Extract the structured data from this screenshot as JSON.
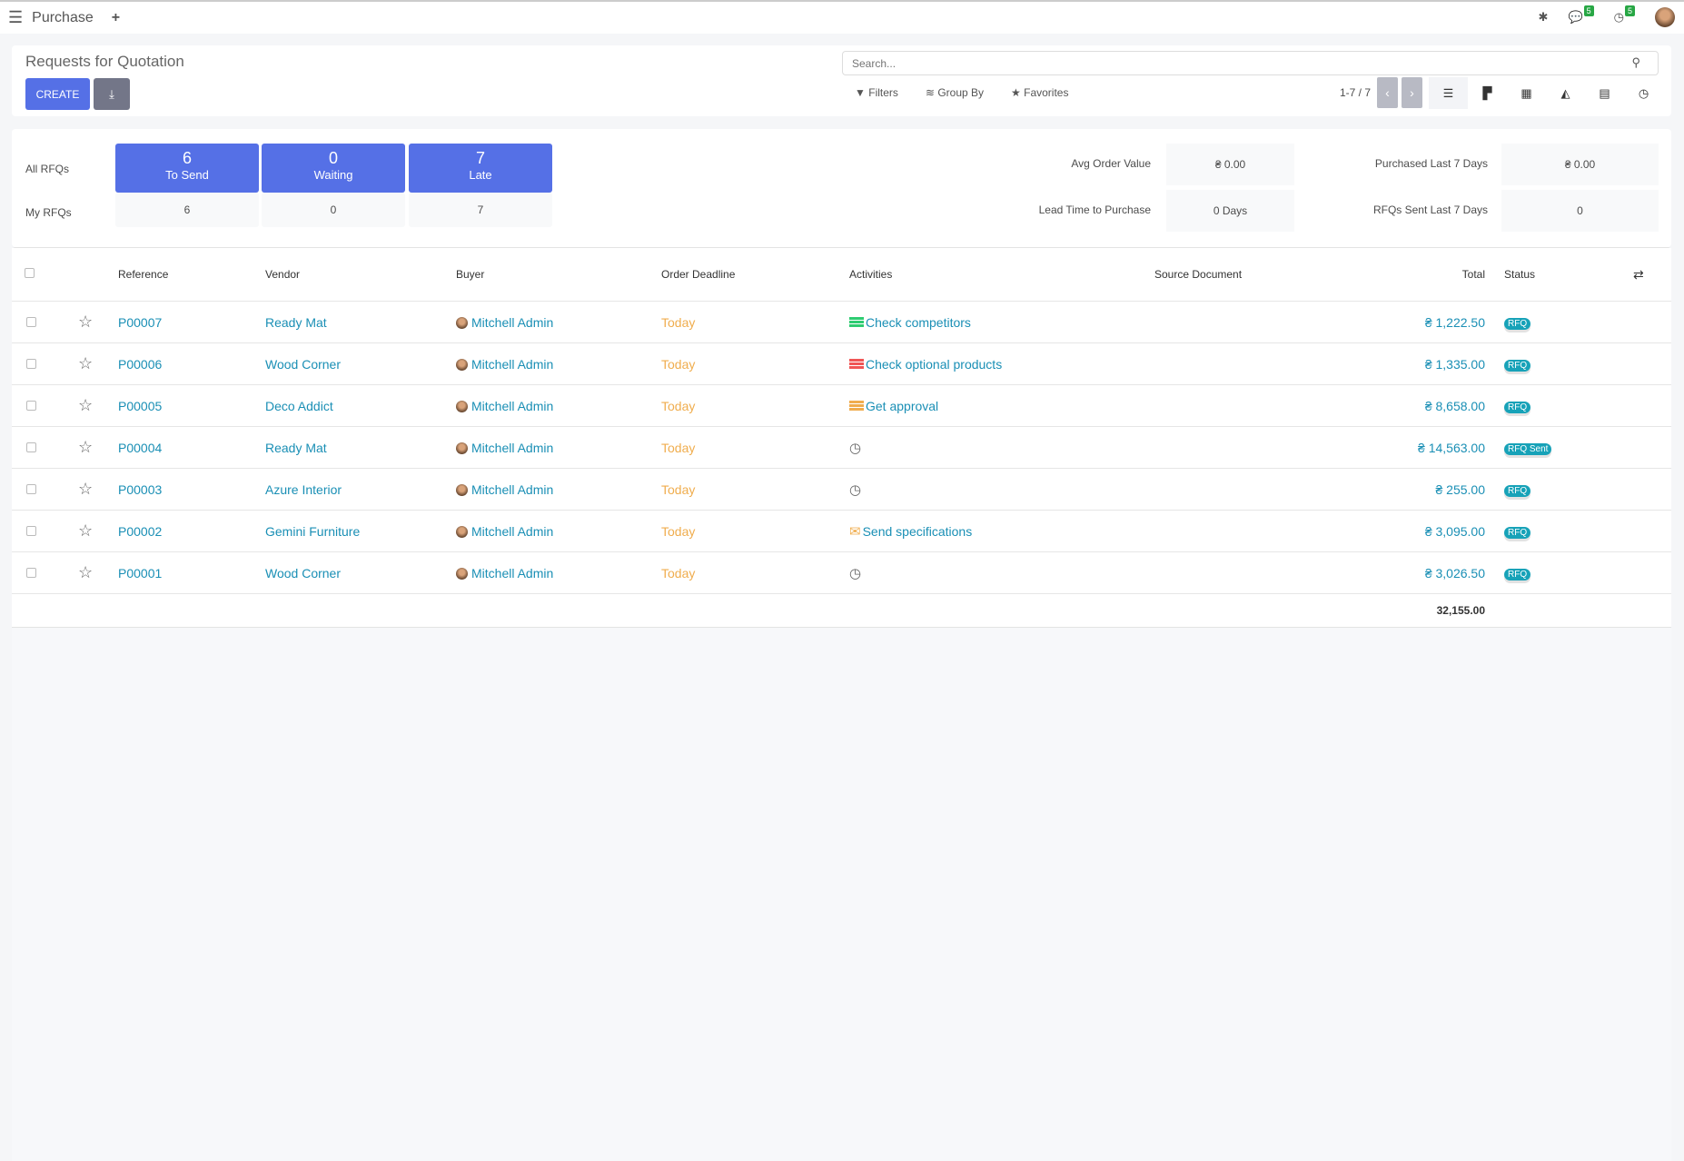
{
  "topbar": {
    "app": "Purchase",
    "menu_icon": "hamburger-icon",
    "plus": "+",
    "messages_count": "5",
    "activities_count": "5"
  },
  "control": {
    "title": "Requests for Quotation",
    "create": "CREATE",
    "search_placeholder": "Search...",
    "filters": "Filters",
    "group_by": "Group By",
    "favorites": "Favorites",
    "pager": "1-7 / 7"
  },
  "dashboard": {
    "all_label": "All RFQs",
    "my_label": "My RFQs",
    "tiles": [
      {
        "count": "6",
        "label": "To Send",
        "my": "6"
      },
      {
        "count": "0",
        "label": "Waiting",
        "my": "0"
      },
      {
        "count": "7",
        "label": "Late",
        "my": "7"
      }
    ],
    "kpis": [
      {
        "label": "Avg Order Value",
        "value": "₴ 0.00"
      },
      {
        "label": "Purchased Last 7 Days",
        "value": "₴ 0.00"
      },
      {
        "label": "Lead Time to Purchase",
        "value": "0 Days"
      },
      {
        "label": "RFQs Sent Last 7 Days",
        "value": "0"
      }
    ]
  },
  "table": {
    "headers": [
      "Reference",
      "Vendor",
      "Buyer",
      "Order Deadline",
      "Activities",
      "Source Document",
      "Total",
      "Status"
    ],
    "rows": [
      {
        "ref": "P00007",
        "vendor": "Ready Mat",
        "buyer": "Mitchell Admin",
        "deadline": "Today",
        "activity": "Check competitors",
        "activity_color": "#2ecc71",
        "total": "₴ 1,222.50",
        "status": "RFQ"
      },
      {
        "ref": "P00006",
        "vendor": "Wood Corner",
        "buyer": "Mitchell Admin",
        "deadline": "Today",
        "activity": "Check optional products",
        "activity_color": "#f05656",
        "total": "₴ 1,335.00",
        "status": "RFQ"
      },
      {
        "ref": "P00005",
        "vendor": "Deco Addict",
        "buyer": "Mitchell Admin",
        "deadline": "Today",
        "activity": "Get approval",
        "activity_color": "#f0ad4e",
        "total": "₴ 8,658.00",
        "status": "RFQ"
      },
      {
        "ref": "P00004",
        "vendor": "Ready Mat",
        "buyer": "Mitchell Admin",
        "deadline": "Today",
        "activity": "",
        "total": "₴ 14,563.00",
        "status": "RFQ Sent"
      },
      {
        "ref": "P00003",
        "vendor": "Azure Interior",
        "buyer": "Mitchell Admin",
        "deadline": "Today",
        "activity": "",
        "total": "₴ 255.00",
        "status": "RFQ"
      },
      {
        "ref": "P00002",
        "vendor": "Gemini Furniture",
        "buyer": "Mitchell Admin",
        "deadline": "Today",
        "activity": "Send specifications",
        "activity_color": "#f0ad4e",
        "activity_icon": "envelope-icon",
        "total": "₴ 3,095.00",
        "status": "RFQ"
      },
      {
        "ref": "P00001",
        "vendor": "Wood Corner",
        "buyer": "Mitchell Admin",
        "deadline": "Today",
        "activity": "",
        "total": "₴ 3,026.50",
        "status": "RFQ"
      }
    ],
    "sum": "32,155.00"
  },
  "colors": {
    "primary": "#5570e6",
    "link": "#1a8fb5",
    "today": "#f0ad4e",
    "badge": "#17a2b8"
  }
}
